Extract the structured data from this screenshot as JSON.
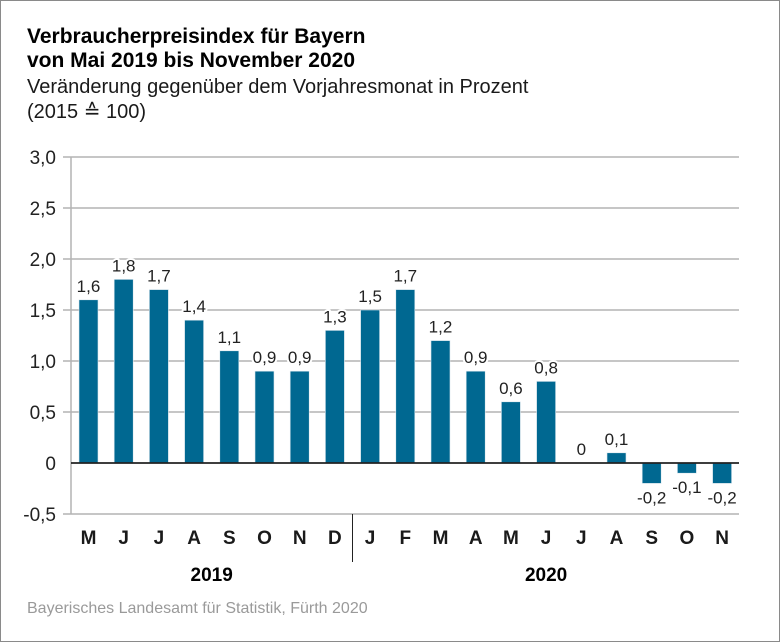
{
  "header": {
    "title_line1": "Verbraucherpreisindex für Bayern",
    "title_line2": "von Mai 2019 bis November 2020",
    "subtitle_line1": "Veränderung gegenüber dem Vorjahresmonat in Prozent",
    "subtitle_line2": "(2015 ≙ 100)"
  },
  "footer": {
    "source": "Bayerisches Landesamt für Statistik, Fürth 2020"
  },
  "colors": {
    "bar": "#006891",
    "grid": "#b4b4b4",
    "zero_line": "#222222"
  },
  "chart_data": {
    "type": "bar",
    "title": "Verbraucherpreisindex für Bayern von Mai 2019 bis November 2020",
    "subtitle": "Veränderung gegenüber dem Vorjahresmonat in Prozent (2015 ≙ 100)",
    "xlabel": "",
    "ylabel": "",
    "categories": [
      "M",
      "J",
      "J",
      "A",
      "S",
      "O",
      "N",
      "D",
      "J",
      "F",
      "M",
      "A",
      "M",
      "J",
      "J",
      "A",
      "S",
      "O",
      "N"
    ],
    "values": [
      1.6,
      1.8,
      1.7,
      1.4,
      1.1,
      0.9,
      0.9,
      1.3,
      1.5,
      1.7,
      1.2,
      0.9,
      0.6,
      0.8,
      0,
      0.1,
      -0.2,
      -0.1,
      -0.2
    ],
    "value_labels": [
      "1,6",
      "1,8",
      "1,7",
      "1,4",
      "1,1",
      "0,9",
      "0,9",
      "1,3",
      "1,5",
      "1,7",
      "1,2",
      "0,9",
      "0,6",
      "0,8",
      "0",
      "0,1",
      "-0,2",
      "-0,1",
      "-0,2"
    ],
    "groups": [
      {
        "label": "2019",
        "start": 0,
        "end": 7
      },
      {
        "label": "2020",
        "start": 8,
        "end": 18
      }
    ],
    "ylim": [
      -0.5,
      3.0
    ],
    "yticks": [
      -0.5,
      0,
      0.5,
      1.0,
      1.5,
      2.0,
      2.5,
      3.0
    ],
    "ytick_labels": [
      "-0,5",
      "0",
      "0,5",
      "1,0",
      "1,5",
      "2,0",
      "2,5",
      "3,0"
    ],
    "grid": true,
    "legend": "none"
  }
}
